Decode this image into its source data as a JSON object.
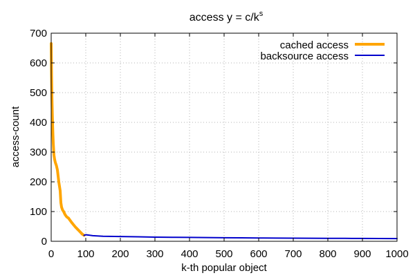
{
  "chart_data": {
    "type": "line",
    "title": {
      "base": "access y = c/k",
      "superscript": "s"
    },
    "xlabel": "k-th popular object",
    "ylabel": "access-count",
    "xlim": [
      0,
      1000
    ],
    "ylim": [
      0,
      700
    ],
    "xticks": [
      "0",
      "100",
      "200",
      "300",
      "400",
      "500",
      "600",
      "700",
      "800",
      "900",
      "1000"
    ],
    "yticks": [
      "0",
      "100",
      "200",
      "300",
      "400",
      "500",
      "600",
      "700"
    ],
    "grid": true,
    "legend_position": "top-right",
    "series": [
      {
        "name": "cached access",
        "color": "#ffa500",
        "x": [
          0,
          1,
          2,
          3,
          4,
          5,
          6,
          8,
          10,
          12,
          15,
          18,
          22,
          26,
          28,
          30,
          33,
          36,
          40,
          45,
          50,
          55,
          60,
          65,
          70,
          75,
          80,
          85,
          90,
          95
        ],
        "y": [
          665,
          560,
          490,
          440,
          395,
          360,
          330,
          290,
          275,
          265,
          255,
          240,
          200,
          170,
          130,
          115,
          105,
          100,
          90,
          82,
          78,
          70,
          62,
          55,
          48,
          42,
          36,
          30,
          24,
          20
        ]
      },
      {
        "name": "backsource access",
        "color": "#0000cc",
        "x": [
          95,
          100,
          120,
          150,
          200,
          250,
          300,
          350,
          400,
          450,
          500,
          550,
          600,
          650,
          700,
          750,
          800,
          850,
          900,
          950,
          1000
        ],
        "y": [
          20,
          22,
          19,
          17,
          16,
          15,
          14,
          13.5,
          13,
          12.5,
          12,
          11.5,
          11,
          10.8,
          10.5,
          10.2,
          10,
          9.8,
          9.5,
          9.2,
          9
        ]
      }
    ]
  }
}
